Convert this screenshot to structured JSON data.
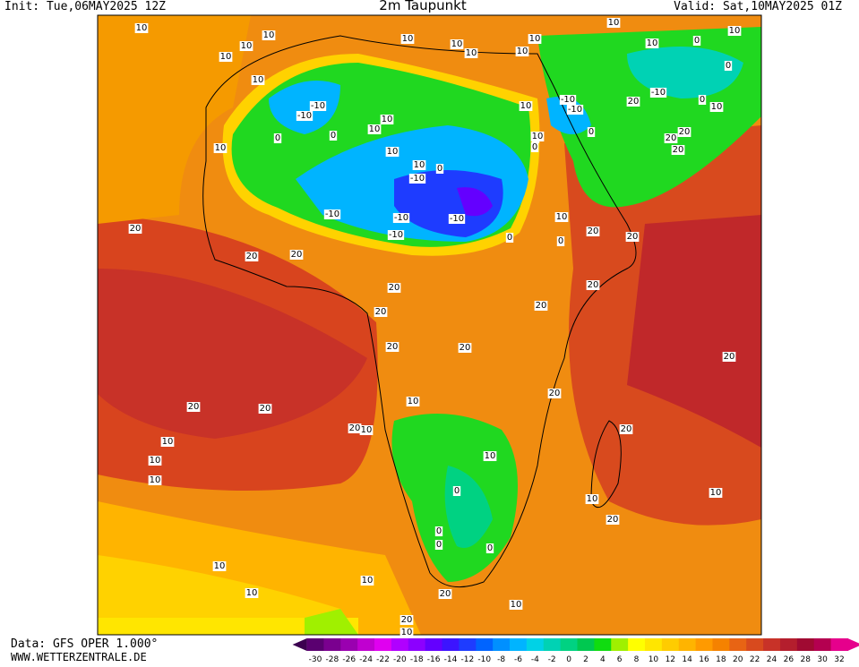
{
  "header": {
    "init": "Init: Tue,06MAY2025 12Z",
    "title": "2m Taupunkt",
    "valid": "Valid: Sat,10MAY2025 01Z"
  },
  "footer": {
    "source": "Data: GFS OPER 1.000°",
    "website": "WWW.WETTERZENTRALE.DE"
  },
  "colorbar": {
    "ticks": [
      -30,
      -28,
      -26,
      -24,
      -22,
      -20,
      -18,
      -16,
      -14,
      -12,
      -10,
      -8,
      -6,
      -4,
      -2,
      0,
      2,
      4,
      6,
      8,
      10,
      12,
      14,
      16,
      18,
      20,
      22,
      24,
      26,
      28,
      30,
      32
    ],
    "colors": [
      "#3c0050",
      "#5a0070",
      "#7a008f",
      "#9a00b0",
      "#c000d0",
      "#e000f0",
      "#b000ff",
      "#8c00ff",
      "#6400ff",
      "#3c14ff",
      "#1e3cff",
      "#0064ff",
      "#0090ff",
      "#00b4ff",
      "#00d2e6",
      "#00d2b4",
      "#00d282",
      "#00c850",
      "#10dc10",
      "#a0f000",
      "#ffff00",
      "#ffe600",
      "#ffcc00",
      "#ffb400",
      "#ff9a00",
      "#f58200",
      "#e86414",
      "#d84a1e",
      "#c83228",
      "#b41e2d",
      "#a00a32",
      "#b40050",
      "#e6008c"
    ]
  },
  "contour_labels": [
    10,
    10,
    10,
    10,
    10,
    10,
    10,
    10,
    10,
    10,
    10,
    0,
    0,
    10,
    -10,
    -10,
    10,
    10,
    0,
    -10,
    -10,
    0,
    10,
    10,
    0,
    0,
    10,
    -10,
    -10,
    -10,
    -10,
    10,
    -10,
    0,
    0,
    10,
    20,
    20,
    20,
    20,
    20,
    20,
    20,
    20,
    20,
    20,
    20,
    20,
    20,
    20,
    20,
    20,
    20,
    20,
    20,
    10,
    10,
    0,
    0,
    0,
    0,
    10,
    10,
    20,
    10,
    10,
    10,
    10,
    10,
    10,
    20,
    10,
    20,
    10,
    20,
    10,
    0,
    0,
    -10,
    20,
    10,
    10,
    10,
    0
  ]
}
